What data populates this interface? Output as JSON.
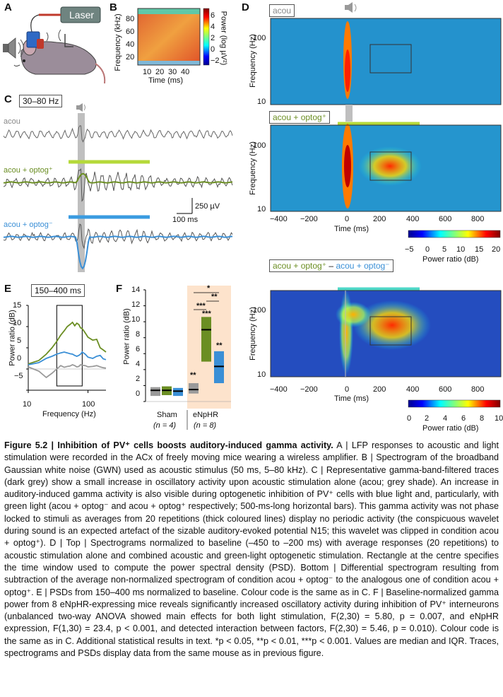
{
  "panels": {
    "A": {
      "letter": "A",
      "laser_label": "Laser"
    },
    "B": {
      "letter": "B",
      "ylabel": "Frequency (kHz)",
      "xlabel": "Time (ms)",
      "yticks": [
        "80",
        "60",
        "40",
        "20"
      ],
      "xticks": [
        "10",
        "20",
        "30",
        "40"
      ],
      "cbar_label": "Power (log µV²)",
      "cbar_ticks": [
        "6",
        "4",
        "2",
        "0",
        "−2"
      ]
    },
    "C": {
      "letter": "C",
      "band": "30–80 Hz",
      "acou": "acou",
      "acou_pos": "acou + optog⁺",
      "acou_neg": "acou + optog⁻",
      "scale_v": "250 µV",
      "scale_t": "100 ms"
    },
    "D": {
      "letter": "D",
      "top_label": "acou",
      "mid_label": "acou + optog⁺",
      "diff_label_a": "acou + optog⁺",
      "diff_minus": "–",
      "diff_label_b": "acou + optog⁻",
      "ylabel": "Frequency (Hz)",
      "xlabel": "Time (ms)",
      "yticks": [
        "100",
        "10"
      ],
      "xticks": [
        "−400",
        "−200",
        "0",
        "200",
        "400",
        "600",
        "800"
      ],
      "cbar1_ticks": [
        "−5",
        "0",
        "5",
        "10",
        "15",
        "20"
      ],
      "cbar1_label": "Power ratio (dB)",
      "cbar2_ticks": [
        "0",
        "2",
        "4",
        "6",
        "8",
        "10"
      ],
      "cbar2_label": "Power ratio (dB)"
    },
    "E": {
      "letter": "E",
      "window": "150–400 ms",
      "ylabel": "Power ratio (dB)",
      "xlabel": "Frequency (Hz)",
      "yticks": [
        "15",
        "10",
        "5",
        "0",
        "−5"
      ],
      "xticks": [
        "10",
        "100"
      ]
    },
    "F": {
      "letter": "F",
      "ylabel": "Power ratio (dB)",
      "yticks": [
        "14",
        "12",
        "10",
        "8",
        "6",
        "4",
        "2",
        "0"
      ],
      "group1": "Sham",
      "group1_n": "(n = 4)",
      "group2": "eNpHR",
      "group2_n": "(n = 8)",
      "sig": [
        "*",
        "**",
        "***",
        "***",
        "**",
        "**"
      ]
    }
  },
  "chart_data": [
    {
      "type": "line",
      "title": "E | 150–400 ms",
      "xlabel": "Frequency (Hz)",
      "ylabel": "Power ratio (dB)",
      "xscale": "log",
      "ylim": [
        -5,
        15
      ],
      "x": [
        10,
        15,
        20,
        25,
        30,
        35,
        40,
        45,
        50,
        55,
        60,
        65,
        70,
        75,
        80,
        90,
        100,
        120,
        140,
        160,
        180,
        200
      ],
      "series": [
        {
          "name": "acou",
          "color": "#9a9a9a",
          "values": [
            0.5,
            -0.5,
            -2,
            -1,
            0,
            0.8,
            0.4,
            0.6,
            0.7,
            1,
            0.8,
            0.5,
            0.6,
            1,
            0.9,
            0.8,
            0.5,
            0.6,
            0.8,
            0.5,
            0.3,
            0.2
          ]
        },
        {
          "name": "acou + optog⁺",
          "color": "#6b8e23",
          "values": [
            1.2,
            2,
            3.5,
            5,
            6.5,
            8,
            9,
            10,
            10.5,
            11,
            10.2,
            10.8,
            10.5,
            9.7,
            9.5,
            8.5,
            7.5,
            6.8,
            7,
            5,
            4.5,
            4
          ]
        },
        {
          "name": "acou + optog⁻",
          "color": "#3a8fd6",
          "values": [
            1,
            1.5,
            2.5,
            3,
            3.5,
            3.8,
            4,
            3.8,
            3.6,
            3.5,
            3.2,
            3,
            3.2,
            3.5,
            4,
            3.5,
            2.8,
            2.5,
            3,
            3.2,
            2.4,
            2.2
          ]
        }
      ]
    },
    {
      "type": "box",
      "title": "F",
      "ylabel": "Power ratio (dB)",
      "ylim": [
        0,
        14
      ],
      "categories": [
        "Sham acou",
        "Sham acou+optog⁺",
        "Sham acou+optog⁻",
        "eNpHR acou",
        "eNpHR acou+optog⁺",
        "eNpHR acou+optog⁻"
      ],
      "medians": [
        1.4,
        1.4,
        1.3,
        1.5,
        9.0,
        4.4
      ],
      "q1": [
        0.7,
        0.8,
        0.7,
        1.0,
        5.0,
        2.3
      ],
      "q3": [
        1.8,
        1.9,
        1.7,
        2.3,
        10.6,
        6.3
      ],
      "colors": [
        "#9a9a9a",
        "#6b8e23",
        "#3a8fd6",
        "#9a9a9a",
        "#6b8e23",
        "#3a8fd6"
      ]
    }
  ],
  "caption": {
    "title": "Figure 5.2 | Inhibition of PV⁺ cells boosts auditory-induced gamma activity.",
    "body": " A | LFP responses to acoustic and light stimulation were recorded in the ACx of freely moving mice wearing a wireless amplifier. B | Spectrogram of the broadband Gaussian white noise (GWN) used as acoustic stimulus (50 ms, 5–80 kHz). C | Representative gamma-band-filtered traces (dark grey) show a small increase in oscillatory activity upon acoustic stimulation alone (acou; grey shade). An increase in auditory-induced gamma activity is also visible during optogenetic inhibition of PV⁺ cells with blue light and, particularly, with green light (acou + optog⁻ and acou + optog⁺ respectively; 500-ms-long horizontal bars). This gamma activity was not phase locked to stimuli as averages from 20 repetitions (thick coloured lines) display no periodic activity (the conspicuous wavelet during sound is an expected artefact of the sizable auditory-evoked potential N15; this wavelet was clipped in condition acou + optog⁺). D | Top | Spectrograms normalized to baseline (–450 to –200 ms) with average responses (20 repetitions) to acoustic stimulation alone and combined acoustic and green-light optogenetic stimulation. Rectangle at the centre specifies the time window used to compute the power spectral density (PSD). Bottom | Differential spectrogram resulting from subtraction of the average non-normalized spectrogram of condition acou + optog⁻ to the analogous one of condition acou + optog⁺. E | PSDs from 150–400 ms normalized to baseline. Colour code is the same as in C. F | Baseline-normalized gamma power from 8 eNpHR-expressing mice reveals significantly increased oscillatory activity during inhibition of PV⁺ interneurons (unbalanced two-way ANOVA showed main effects for both light stimulation, F(2,30) = 5.80, p = 0.007, and eNpHR expression, F(1,30) = 23.4, p < 0.001, and detected interaction between factors, F(2,30) = 5.46, p = 0.010). Colour code is the same as in C. Additional statistical results in text. *p < 0.05, **p < 0.01, ***p < 0.001. Values are median and IQR. Traces, spectrograms and PSDs display data from the same mouse as in previous figure."
  }
}
